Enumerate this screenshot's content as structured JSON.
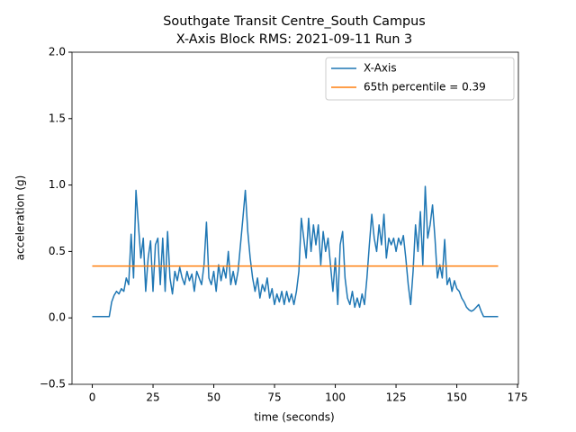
{
  "chart_data": {
    "type": "line",
    "title": "Southgate Transit Centre_South Campus",
    "subtitle": "X-Axis Block RMS: 2021-09-11 Run 3",
    "x_label": "time (seconds)",
    "y_label": "acceleration (g)",
    "xlim": [
      -8.35,
      175.35
    ],
    "ylim": [
      -0.5,
      2.0
    ],
    "xticks": [
      0,
      25,
      50,
      75,
      100,
      125,
      150,
      175
    ],
    "yticks": [
      {
        "value": -0.5,
        "label": "−0.5"
      },
      {
        "value": 0,
        "label": "0.0"
      },
      {
        "value": 0.5,
        "label": "0.5"
      },
      {
        "value": 1.0,
        "label": "1.0"
      },
      {
        "value": 1.5,
        "label": "1.5"
      },
      {
        "value": 2.0,
        "label": "2.0"
      }
    ],
    "grid": false,
    "legend": "upper right",
    "series": [
      {
        "name": "X-Axis",
        "color": "#1f77b4",
        "x": [
          0,
          1,
          2,
          3,
          4,
          5,
          6,
          7,
          8,
          9,
          10,
          11,
          12,
          13,
          14,
          15,
          16,
          17,
          18,
          19,
          20,
          21,
          22,
          23,
          24,
          25,
          26,
          27,
          28,
          29,
          30,
          31,
          32,
          33,
          34,
          35,
          36,
          37,
          38,
          39,
          40,
          41,
          42,
          43,
          44,
          45,
          46,
          47,
          48,
          49,
          50,
          51,
          52,
          53,
          54,
          55,
          56,
          57,
          58,
          59,
          60,
          61,
          62,
          63,
          64,
          65,
          66,
          67,
          68,
          69,
          70,
          71,
          72,
          73,
          74,
          75,
          76,
          77,
          78,
          79,
          80,
          81,
          82,
          83,
          84,
          85,
          86,
          87,
          88,
          89,
          90,
          91,
          92,
          93,
          94,
          95,
          96,
          97,
          98,
          99,
          100,
          101,
          102,
          103,
          104,
          105,
          106,
          107,
          108,
          109,
          110,
          111,
          112,
          113,
          114,
          115,
          116,
          117,
          118,
          119,
          120,
          121,
          122,
          123,
          124,
          125,
          126,
          127,
          128,
          129,
          130,
          131,
          132,
          133,
          134,
          135,
          136,
          137,
          138,
          139,
          140,
          141,
          142,
          143,
          144,
          145,
          146,
          147,
          148,
          149,
          150,
          151,
          152,
          153,
          154,
          155,
          156,
          157,
          158,
          159,
          160,
          161,
          162,
          163,
          164,
          165,
          166,
          167
        ],
        "values": [
          0.01,
          0.01,
          0.01,
          0.01,
          0.01,
          0.01,
          0.01,
          0.01,
          0.12,
          0.17,
          0.2,
          0.18,
          0.22,
          0.2,
          0.3,
          0.25,
          0.63,
          0.3,
          0.96,
          0.7,
          0.45,
          0.6,
          0.2,
          0.45,
          0.58,
          0.2,
          0.55,
          0.6,
          0.25,
          0.6,
          0.2,
          0.65,
          0.3,
          0.18,
          0.35,
          0.28,
          0.38,
          0.3,
          0.25,
          0.35,
          0.28,
          0.33,
          0.2,
          0.35,
          0.3,
          0.25,
          0.4,
          0.72,
          0.3,
          0.25,
          0.35,
          0.2,
          0.4,
          0.28,
          0.38,
          0.3,
          0.5,
          0.25,
          0.35,
          0.25,
          0.35,
          0.55,
          0.75,
          0.96,
          0.65,
          0.45,
          0.3,
          0.2,
          0.3,
          0.15,
          0.25,
          0.2,
          0.3,
          0.15,
          0.22,
          0.1,
          0.18,
          0.12,
          0.2,
          0.1,
          0.2,
          0.12,
          0.18,
          0.1,
          0.2,
          0.35,
          0.75,
          0.6,
          0.45,
          0.75,
          0.5,
          0.7,
          0.55,
          0.7,
          0.4,
          0.65,
          0.5,
          0.6,
          0.4,
          0.2,
          0.45,
          0.1,
          0.55,
          0.65,
          0.3,
          0.15,
          0.1,
          0.2,
          0.08,
          0.15,
          0.08,
          0.18,
          0.1,
          0.3,
          0.55,
          0.78,
          0.6,
          0.5,
          0.7,
          0.55,
          0.78,
          0.45,
          0.6,
          0.55,
          0.6,
          0.5,
          0.6,
          0.55,
          0.62,
          0.45,
          0.25,
          0.1,
          0.35,
          0.7,
          0.5,
          0.8,
          0.4,
          0.99,
          0.6,
          0.7,
          0.85,
          0.6,
          0.3,
          0.4,
          0.3,
          0.59,
          0.25,
          0.3,
          0.2,
          0.28,
          0.22,
          0.2,
          0.15,
          0.12,
          0.08,
          0.06,
          0.05,
          0.06,
          0.08,
          0.1,
          0.05,
          0.01,
          0.01,
          0.01,
          0.01,
          0.01,
          0.01,
          0.01
        ]
      },
      {
        "name": "65th percentile = 0.39",
        "color": "#ff7f0e",
        "x": [
          0,
          167
        ],
        "values": [
          0.39,
          0.39
        ]
      }
    ]
  }
}
